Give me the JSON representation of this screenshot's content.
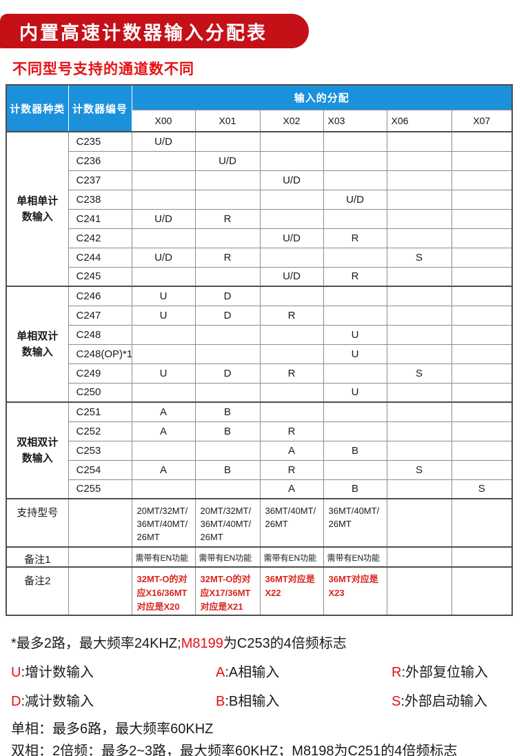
{
  "page": {
    "title": "内置高速计数器输入分配表",
    "subtitle": "不同型号支持的通道数不同"
  },
  "table": {
    "col1_header": "计数器种类",
    "col2_header": "计数器编号",
    "span_header": "输入的分配",
    "channels": [
      "X00",
      "X01",
      "X02",
      "X03",
      "X06",
      "X07"
    ],
    "groups": [
      {
        "name": "单相单计\n数输入",
        "rows": [
          {
            "id": "C235",
            "cells": [
              "U/D",
              "",
              "",
              "",
              "",
              ""
            ]
          },
          {
            "id": "C236",
            "cells": [
              "",
              "U/D",
              "",
              "",
              "",
              ""
            ]
          },
          {
            "id": "C237",
            "cells": [
              "",
              "",
              "U/D",
              "",
              "",
              ""
            ]
          },
          {
            "id": "C238",
            "cells": [
              "",
              "",
              "",
              "U/D",
              "",
              ""
            ]
          },
          {
            "id": "C241",
            "cells": [
              "U/D",
              "R",
              "",
              "",
              "",
              ""
            ]
          },
          {
            "id": "C242",
            "cells": [
              "",
              "",
              "U/D",
              "R",
              "",
              ""
            ]
          },
          {
            "id": "C244",
            "cells": [
              "U/D",
              "R",
              "",
              "",
              "S",
              ""
            ]
          },
          {
            "id": "C245",
            "cells": [
              "",
              "",
              "U/D",
              "R",
              "",
              ""
            ]
          }
        ]
      },
      {
        "name": "单相双计\n数输入",
        "rows": [
          {
            "id": "C246",
            "cells": [
              "U",
              "D",
              "",
              "",
              "",
              ""
            ]
          },
          {
            "id": "C247",
            "cells": [
              "U",
              "D",
              "R",
              "",
              "",
              ""
            ]
          },
          {
            "id": "C248",
            "cells": [
              "",
              "",
              "",
              "U",
              "",
              ""
            ]
          },
          {
            "id": "C248(OP)*1",
            "cells": [
              "",
              "",
              "",
              "U",
              "",
              ""
            ]
          },
          {
            "id": "C249",
            "cells": [
              "U",
              "D",
              "R",
              "",
              "S",
              ""
            ]
          },
          {
            "id": "C250",
            "cells": [
              "",
              "",
              "",
              "U",
              "",
              ""
            ]
          }
        ]
      },
      {
        "name": "双相双计\n数输入",
        "rows": [
          {
            "id": "C251",
            "cells": [
              "A",
              "B",
              "",
              "",
              "",
              ""
            ]
          },
          {
            "id": "C252",
            "cells": [
              "A",
              "B",
              "R",
              "",
              "",
              ""
            ]
          },
          {
            "id": "C253",
            "cells": [
              "",
              "",
              "A",
              "B",
              "",
              ""
            ]
          },
          {
            "id": "C254",
            "cells": [
              "A",
              "B",
              "R",
              "",
              "S",
              ""
            ]
          },
          {
            "id": "C255",
            "cells": [
              "",
              "",
              "A",
              "B",
              "",
              "S"
            ]
          }
        ]
      }
    ],
    "footer_rows": [
      {
        "label": "支持型号",
        "style": "models",
        "cells": [
          "20MT/32MT/\n36MT/40MT/\n26MT",
          "20MT/32MT/\n36MT/40MT/\n26MT",
          "36MT/40MT/\n26MT",
          "36MT/40MT/\n26MT",
          "",
          ""
        ]
      },
      {
        "label": "备注1",
        "style": "note",
        "cells": [
          "需带有EN功能",
          "需带有EN功能",
          "需带有EN功能",
          "需带有EN功能",
          "",
          ""
        ]
      },
      {
        "label": "备注2",
        "style": "note-red",
        "cells": [
          "32MT-O的对应X16/36MT对应是X20",
          "32MT-O的对应X17/36MT对应是X21",
          "36MT对应是X22",
          "36MT对应是X23",
          "",
          ""
        ]
      }
    ]
  },
  "notes": {
    "line1_black1": "*最多2路，最大频率24KHZ;",
    "line1_red": "M8199",
    "line1_black2": "为C253的4倍频标志",
    "legend": [
      {
        "key": "U",
        "text": ":增计数输入"
      },
      {
        "key": "A",
        "text": ":A相输入"
      },
      {
        "key": "R",
        "text": ":外部复位输入"
      },
      {
        "key": "D",
        "text": ":减计数输入"
      },
      {
        "key": "B",
        "text": ":B相输入"
      },
      {
        "key": "S",
        "text": ":外部启动输入"
      }
    ],
    "line_single": "单相：最多6路，最大频率60KHZ",
    "line_double": "双相：2倍频：最多2~3路，最大频率60KHZ；M8198为C251的4倍频标志"
  },
  "colors": {
    "banner_bg": "#C51018",
    "subtitle_red": "#E60F12",
    "header_blue": "#1B91DC",
    "table_red": "#D9251D"
  }
}
